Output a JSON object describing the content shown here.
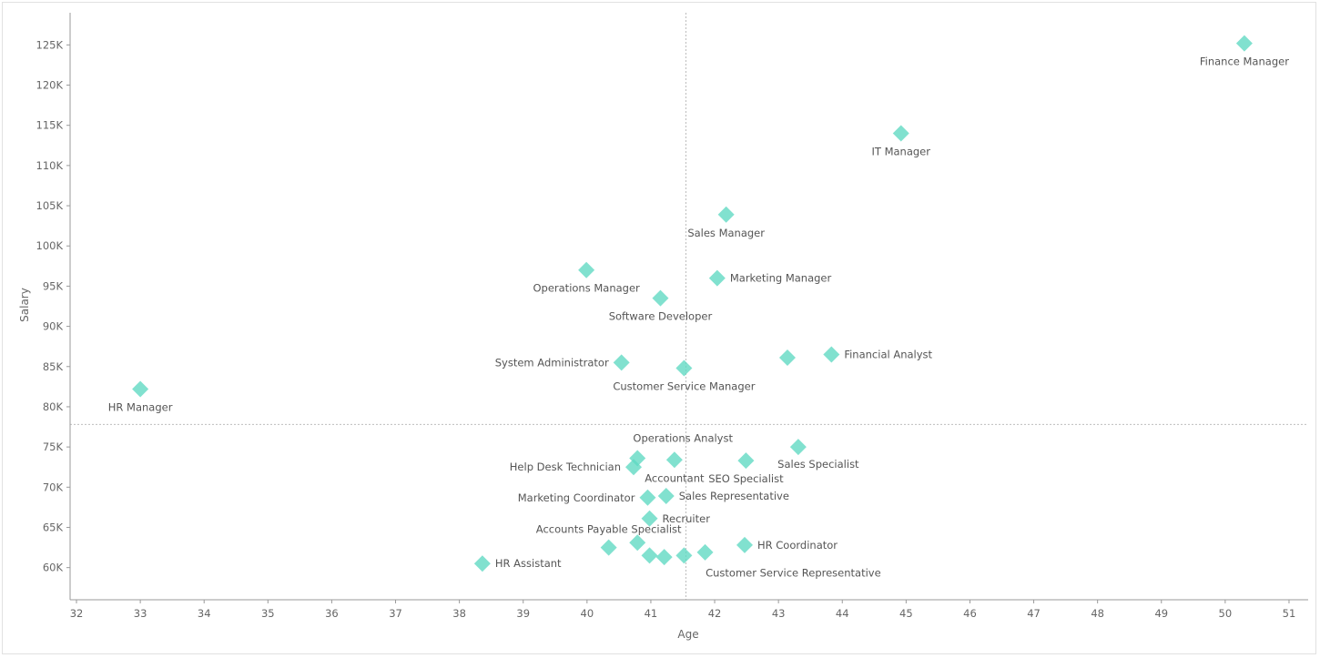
{
  "chart_data": {
    "type": "scatter",
    "xlabel": "Age",
    "ylabel": "Salary",
    "xlim": [
      31.9,
      51.3
    ],
    "ylim": [
      56000,
      129000
    ],
    "x_ticks": [
      32,
      33,
      34,
      35,
      36,
      37,
      38,
      39,
      40,
      41,
      42,
      43,
      44,
      45,
      46,
      47,
      48,
      49,
      50,
      51
    ],
    "y_ticks": [
      {
        "value": 60000,
        "label": "60K"
      },
      {
        "value": 65000,
        "label": "65K"
      },
      {
        "value": 70000,
        "label": "70K"
      },
      {
        "value": 75000,
        "label": "75K"
      },
      {
        "value": 80000,
        "label": "80K"
      },
      {
        "value": 85000,
        "label": "85K"
      },
      {
        "value": 90000,
        "label": "90K"
      },
      {
        "value": 95000,
        "label": "95K"
      },
      {
        "value": 100000,
        "label": "100K"
      },
      {
        "value": 105000,
        "label": "105K"
      },
      {
        "value": 110000,
        "label": "110K"
      },
      {
        "value": 115000,
        "label": "115K"
      },
      {
        "value": 120000,
        "label": "120K"
      },
      {
        "value": 125000,
        "label": "125K"
      }
    ],
    "reference_lines": {
      "x": 41.55,
      "y": 77800
    },
    "marker_color": "#5dd9c1",
    "grid": false,
    "points": [
      {
        "x": 50.3,
        "y": 125200,
        "label": "Finance Manager",
        "label_pos": "below"
      },
      {
        "x": 44.92,
        "y": 114000,
        "label": "IT Manager",
        "label_pos": "below"
      },
      {
        "x": 42.18,
        "y": 103900,
        "label": "Sales Manager",
        "label_pos": "below"
      },
      {
        "x": 42.04,
        "y": 96000,
        "label": "Marketing Manager",
        "label_pos": "right"
      },
      {
        "x": 39.99,
        "y": 97000,
        "label": "Operations Manager",
        "label_pos": "below"
      },
      {
        "x": 41.15,
        "y": 93500,
        "label": "Software Developer",
        "label_pos": "below"
      },
      {
        "x": 43.83,
        "y": 86500,
        "label": "Financial Analyst",
        "label_pos": "right"
      },
      {
        "x": 43.14,
        "y": 86100,
        "label": "",
        "label_pos": "none"
      },
      {
        "x": 40.54,
        "y": 85500,
        "label": "System Administrator",
        "label_pos": "left"
      },
      {
        "x": 41.52,
        "y": 84800,
        "label": "Customer Service Manager",
        "label_pos": "below"
      },
      {
        "x": 33.0,
        "y": 82200,
        "label": "HR Manager",
        "label_pos": "below"
      },
      {
        "x": 43.31,
        "y": 75000,
        "label": "Sales Specialist",
        "label_pos": "belowright"
      },
      {
        "x": 40.79,
        "y": 73600,
        "label": "Operations Analyst",
        "label_pos": "aboveright"
      },
      {
        "x": 41.37,
        "y": 73400,
        "label": "Accountant",
        "label_pos": "below"
      },
      {
        "x": 42.49,
        "y": 73300,
        "label": "SEO Specialist",
        "label_pos": "below"
      },
      {
        "x": 40.73,
        "y": 72500,
        "label": "Help Desk Technician",
        "label_pos": "left"
      },
      {
        "x": 40.95,
        "y": 68700,
        "label": "Marketing Coordinator",
        "label_pos": "left"
      },
      {
        "x": 41.24,
        "y": 68900,
        "label": "Sales Representative",
        "label_pos": "right"
      },
      {
        "x": 40.98,
        "y": 66100,
        "label": "Recruiter",
        "label_pos": "right"
      },
      {
        "x": 40.34,
        "y": 62500,
        "label": "Accounts Payable Specialist",
        "label_pos": "aboveleft"
      },
      {
        "x": 40.79,
        "y": 63100,
        "label": "",
        "label_pos": "none"
      },
      {
        "x": 40.98,
        "y": 61500,
        "label": "",
        "label_pos": "none"
      },
      {
        "x": 41.21,
        "y": 61300,
        "label": "",
        "label_pos": "none"
      },
      {
        "x": 41.52,
        "y": 61500,
        "label": "Customer Service Representative",
        "label_pos": "belowright"
      },
      {
        "x": 41.85,
        "y": 61900,
        "label": "",
        "label_pos": "none"
      },
      {
        "x": 42.47,
        "y": 62800,
        "label": "HR Coordinator",
        "label_pos": "right"
      },
      {
        "x": 38.36,
        "y": 60500,
        "label": "HR Assistant",
        "label_pos": "right"
      }
    ]
  }
}
